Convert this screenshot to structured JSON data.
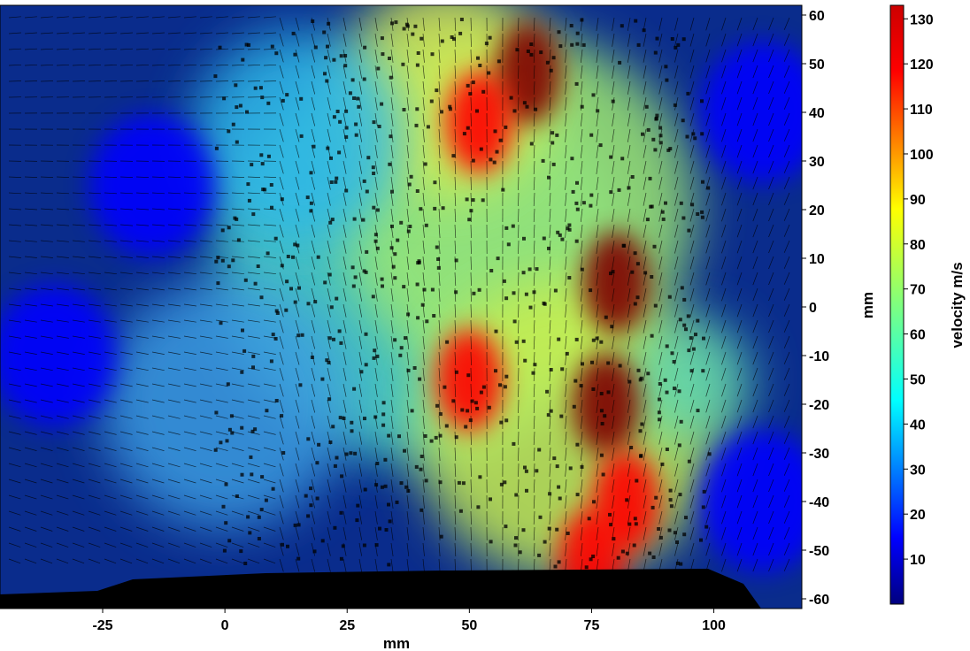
{
  "chart_data": {
    "type": "heatmap",
    "subtype": "velocity vector field (PIV) over color map",
    "xlabel": "mm",
    "ylabel": "mm",
    "colorbar_label": "velocity m/s",
    "xlim": [
      -46,
      118
    ],
    "ylim": [
      -62,
      62
    ],
    "x_ticks": [
      -25,
      0,
      25,
      50,
      75,
      100
    ],
    "y_ticks": [
      60,
      50,
      40,
      30,
      20,
      10,
      0,
      -10,
      -20,
      -30,
      -40,
      -50,
      -60
    ],
    "colorbar_ticks": [
      130,
      120,
      110,
      100,
      90,
      80,
      70,
      60,
      50,
      40,
      30,
      20,
      10
    ],
    "colorbar_range": [
      0,
      133
    ],
    "colormap": [
      "#00007f",
      "#0000ff",
      "#007fff",
      "#00ffff",
      "#7fff7f",
      "#ffff00",
      "#ff7f00",
      "#ff0000",
      "#7f0000"
    ],
    "high_velocity_regions": [
      {
        "x": 62,
        "y": 48,
        "velocity": 125
      },
      {
        "x": 52,
        "y": 38,
        "velocity": 115
      },
      {
        "x": 80,
        "y": 5,
        "velocity": 128
      },
      {
        "x": 78,
        "y": -20,
        "velocity": 130
      },
      {
        "x": 82,
        "y": -40,
        "velocity": 122
      },
      {
        "x": 50,
        "y": -15,
        "velocity": 110
      },
      {
        "x": 75,
        "y": -52,
        "velocity": 120
      }
    ],
    "low_velocity_regions": [
      {
        "x": -35,
        "y": -10,
        "velocity": 15
      },
      {
        "x": -15,
        "y": 25,
        "velocity": 20
      },
      {
        "x": 110,
        "y": 40,
        "velocity": 10
      },
      {
        "x": 110,
        "y": -40,
        "velocity": 15
      }
    ],
    "masked_region": "no data band along bottom edge (y < -53 mm)",
    "grid": false,
    "colorbar_position": "right"
  }
}
